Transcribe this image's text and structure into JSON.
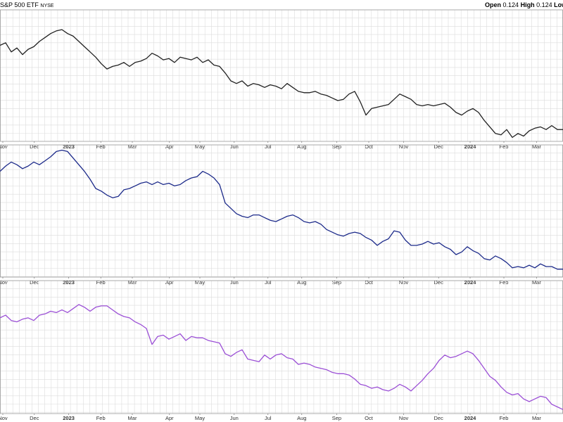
{
  "header": {
    "title": "S&P 500 ETF",
    "exchange": "NYSE",
    "open_label": "Open",
    "open_value": "0.124",
    "high_label": "High",
    "high_value": "0.124",
    "low_label": "Low"
  },
  "colors": {
    "panel1_line": "#222222",
    "panel2_line": "#1c2a8a",
    "panel3_line": "#9b4fd6",
    "grid": "#dcdcdc",
    "frame": "#999999"
  },
  "chart_data": {
    "type": "line",
    "grid": true,
    "x_ticks": [
      "Nov",
      "Dec",
      "2023",
      "Feb",
      "Mar",
      "Apr",
      "May",
      "Jun",
      "Jul",
      "Aug",
      "Sep",
      "Oct",
      "Nov",
      "Dec",
      "2024",
      "Feb",
      "Mar"
    ],
    "x_ticks_bold": [
      "2023",
      "2024"
    ],
    "x_range": [
      0,
      100
    ],
    "tick_positions": [
      0.5,
      6.1,
      12.2,
      17.9,
      23.5,
      30.1,
      35.5,
      41.6,
      47.6,
      53.6,
      59.8,
      65.5,
      71.7,
      77.9,
      83.5,
      89.5,
      95.3
    ],
    "panels": [
      {
        "name": "",
        "ylim": [
          0,
          100
        ],
        "points": [
          [
            0,
            73
          ],
          [
            1,
            75
          ],
          [
            2,
            68
          ],
          [
            3,
            71
          ],
          [
            4,
            66
          ],
          [
            5,
            70
          ],
          [
            6,
            72
          ],
          [
            7,
            76
          ],
          [
            8,
            79
          ],
          [
            9,
            82
          ],
          [
            10,
            84
          ],
          [
            11,
            85
          ],
          [
            12,
            82
          ],
          [
            13,
            80
          ],
          [
            14,
            76
          ],
          [
            15,
            72
          ],
          [
            16,
            68
          ],
          [
            17,
            64
          ],
          [
            18,
            59
          ],
          [
            19,
            55
          ],
          [
            20,
            57
          ],
          [
            21,
            58
          ],
          [
            22,
            60
          ],
          [
            23,
            57
          ],
          [
            24,
            60
          ],
          [
            25,
            61
          ],
          [
            26,
            63
          ],
          [
            27,
            67
          ],
          [
            28,
            65
          ],
          [
            29,
            62
          ],
          [
            30,
            63
          ],
          [
            31,
            60
          ],
          [
            32,
            64
          ],
          [
            33,
            63
          ],
          [
            34,
            62
          ],
          [
            35,
            64
          ],
          [
            36,
            60
          ],
          [
            37,
            62
          ],
          [
            38,
            58
          ],
          [
            39,
            57
          ],
          [
            40,
            52
          ],
          [
            41,
            46
          ],
          [
            42,
            44
          ],
          [
            43,
            46
          ],
          [
            44,
            42
          ],
          [
            45,
            44
          ],
          [
            46,
            43
          ],
          [
            47,
            41
          ],
          [
            48,
            43
          ],
          [
            49,
            42
          ],
          [
            50,
            40
          ],
          [
            51,
            44
          ],
          [
            52,
            41
          ],
          [
            53,
            38
          ],
          [
            54,
            37
          ],
          [
            55,
            37
          ],
          [
            56,
            38
          ],
          [
            57,
            36
          ],
          [
            58,
            35
          ],
          [
            59,
            33
          ],
          [
            60,
            31
          ],
          [
            61,
            32
          ],
          [
            62,
            36
          ],
          [
            63,
            38
          ],
          [
            64,
            30
          ],
          [
            65,
            20
          ],
          [
            66,
            25
          ],
          [
            67,
            26
          ],
          [
            68,
            27
          ],
          [
            69,
            28
          ],
          [
            70,
            32
          ],
          [
            71,
            36
          ],
          [
            72,
            34
          ],
          [
            73,
            32
          ],
          [
            74,
            28
          ],
          [
            75,
            27
          ],
          [
            76,
            28
          ],
          [
            77,
            27
          ],
          [
            78,
            28
          ],
          [
            79,
            29
          ],
          [
            80,
            26
          ],
          [
            81,
            22
          ],
          [
            82,
            20
          ],
          [
            83,
            23
          ],
          [
            84,
            25
          ],
          [
            85,
            22
          ],
          [
            86,
            16
          ],
          [
            87,
            11
          ],
          [
            88,
            6
          ],
          [
            89,
            5
          ],
          [
            90,
            9
          ],
          [
            91,
            3
          ],
          [
            92,
            6
          ],
          [
            93,
            4
          ],
          [
            94,
            8
          ],
          [
            95,
            10
          ],
          [
            96,
            11
          ],
          [
            97,
            9
          ],
          [
            98,
            12
          ],
          [
            99,
            9
          ],
          [
            100,
            9
          ]
        ]
      },
      {
        "name": "",
        "ylim": [
          0,
          100
        ],
        "points": [
          [
            0,
            80
          ],
          [
            1,
            84
          ],
          [
            2,
            87
          ],
          [
            3,
            85
          ],
          [
            4,
            82
          ],
          [
            5,
            84
          ],
          [
            6,
            87
          ],
          [
            7,
            85
          ],
          [
            8,
            88
          ],
          [
            9,
            91
          ],
          [
            10,
            95
          ],
          [
            11,
            96
          ],
          [
            12,
            95
          ],
          [
            13,
            90
          ],
          [
            14,
            85
          ],
          [
            15,
            80
          ],
          [
            16,
            74
          ],
          [
            17,
            67
          ],
          [
            18,
            65
          ],
          [
            19,
            62
          ],
          [
            20,
            60
          ],
          [
            21,
            61
          ],
          [
            22,
            66
          ],
          [
            23,
            67
          ],
          [
            24,
            69
          ],
          [
            25,
            71
          ],
          [
            26,
            72
          ],
          [
            27,
            70
          ],
          [
            28,
            72
          ],
          [
            29,
            70
          ],
          [
            30,
            71
          ],
          [
            31,
            69
          ],
          [
            32,
            70
          ],
          [
            33,
            73
          ],
          [
            34,
            75
          ],
          [
            35,
            76
          ],
          [
            36,
            80
          ],
          [
            37,
            78
          ],
          [
            38,
            75
          ],
          [
            39,
            70
          ],
          [
            40,
            56
          ],
          [
            41,
            52
          ],
          [
            42,
            48
          ],
          [
            43,
            46
          ],
          [
            44,
            45
          ],
          [
            45,
            47
          ],
          [
            46,
            47
          ],
          [
            47,
            45
          ],
          [
            48,
            43
          ],
          [
            49,
            42
          ],
          [
            50,
            44
          ],
          [
            51,
            46
          ],
          [
            52,
            47
          ],
          [
            53,
            45
          ],
          [
            54,
            42
          ],
          [
            55,
            41
          ],
          [
            56,
            42
          ],
          [
            57,
            40
          ],
          [
            58,
            36
          ],
          [
            59,
            34
          ],
          [
            60,
            32
          ],
          [
            61,
            31
          ],
          [
            62,
            33
          ],
          [
            63,
            34
          ],
          [
            64,
            33
          ],
          [
            65,
            30
          ],
          [
            66,
            28
          ],
          [
            67,
            24
          ],
          [
            68,
            27
          ],
          [
            69,
            29
          ],
          [
            70,
            35
          ],
          [
            71,
            34
          ],
          [
            72,
            28
          ],
          [
            73,
            24
          ],
          [
            74,
            24
          ],
          [
            75,
            25
          ],
          [
            76,
            27
          ],
          [
            77,
            25
          ],
          [
            78,
            26
          ],
          [
            79,
            23
          ],
          [
            80,
            21
          ],
          [
            81,
            17
          ],
          [
            82,
            19
          ],
          [
            83,
            23
          ],
          [
            84,
            20
          ],
          [
            85,
            18
          ],
          [
            86,
            14
          ],
          [
            87,
            13
          ],
          [
            88,
            16
          ],
          [
            89,
            14
          ],
          [
            90,
            11
          ],
          [
            91,
            7
          ],
          [
            92,
            8
          ],
          [
            93,
            7
          ],
          [
            94,
            9
          ],
          [
            95,
            7
          ],
          [
            96,
            10
          ],
          [
            97,
            8
          ],
          [
            98,
            8
          ],
          [
            99,
            6
          ],
          [
            100,
            6
          ]
        ]
      },
      {
        "name": "",
        "ylim": [
          0,
          100
        ],
        "points": [
          [
            0,
            72
          ],
          [
            1,
            74
          ],
          [
            2,
            70
          ],
          [
            3,
            69
          ],
          [
            4,
            71
          ],
          [
            5,
            72
          ],
          [
            6,
            70
          ],
          [
            7,
            74
          ],
          [
            8,
            75
          ],
          [
            9,
            77
          ],
          [
            10,
            76
          ],
          [
            11,
            78
          ],
          [
            12,
            76
          ],
          [
            13,
            79
          ],
          [
            14,
            82
          ],
          [
            15,
            80
          ],
          [
            16,
            77
          ],
          [
            17,
            80
          ],
          [
            18,
            81
          ],
          [
            19,
            81
          ],
          [
            20,
            78
          ],
          [
            21,
            75
          ],
          [
            22,
            73
          ],
          [
            23,
            72
          ],
          [
            24,
            69
          ],
          [
            25,
            67
          ],
          [
            26,
            64
          ],
          [
            27,
            52
          ],
          [
            28,
            58
          ],
          [
            29,
            59
          ],
          [
            30,
            56
          ],
          [
            31,
            58
          ],
          [
            32,
            60
          ],
          [
            33,
            55
          ],
          [
            34,
            58
          ],
          [
            35,
            57
          ],
          [
            36,
            57
          ],
          [
            37,
            55
          ],
          [
            38,
            54
          ],
          [
            39,
            53
          ],
          [
            40,
            45
          ],
          [
            41,
            43
          ],
          [
            42,
            46
          ],
          [
            43,
            48
          ],
          [
            44,
            41
          ],
          [
            45,
            40
          ],
          [
            46,
            39
          ],
          [
            47,
            44
          ],
          [
            48,
            41
          ],
          [
            49,
            44
          ],
          [
            50,
            45
          ],
          [
            51,
            42
          ],
          [
            52,
            41
          ],
          [
            53,
            37
          ],
          [
            54,
            38
          ],
          [
            55,
            37
          ],
          [
            56,
            35
          ],
          [
            57,
            34
          ],
          [
            58,
            33
          ],
          [
            59,
            31
          ],
          [
            60,
            30
          ],
          [
            61,
            30
          ],
          [
            62,
            29
          ],
          [
            63,
            26
          ],
          [
            64,
            22
          ],
          [
            65,
            21
          ],
          [
            66,
            19
          ],
          [
            67,
            20
          ],
          [
            68,
            18
          ],
          [
            69,
            17
          ],
          [
            70,
            19
          ],
          [
            71,
            22
          ],
          [
            72,
            20
          ],
          [
            73,
            17
          ],
          [
            74,
            21
          ],
          [
            75,
            25
          ],
          [
            76,
            30
          ],
          [
            77,
            34
          ],
          [
            78,
            40
          ],
          [
            79,
            44
          ],
          [
            80,
            42
          ],
          [
            81,
            43
          ],
          [
            82,
            45
          ],
          [
            83,
            47
          ],
          [
            84,
            45
          ],
          [
            85,
            40
          ],
          [
            86,
            34
          ],
          [
            87,
            28
          ],
          [
            88,
            25
          ],
          [
            89,
            20
          ],
          [
            90,
            16
          ],
          [
            91,
            14
          ],
          [
            92,
            15
          ],
          [
            93,
            11
          ],
          [
            94,
            9
          ],
          [
            95,
            11
          ],
          [
            96,
            13
          ],
          [
            97,
            12
          ],
          [
            98,
            7
          ],
          [
            99,
            5
          ],
          [
            100,
            3
          ]
        ]
      }
    ]
  }
}
